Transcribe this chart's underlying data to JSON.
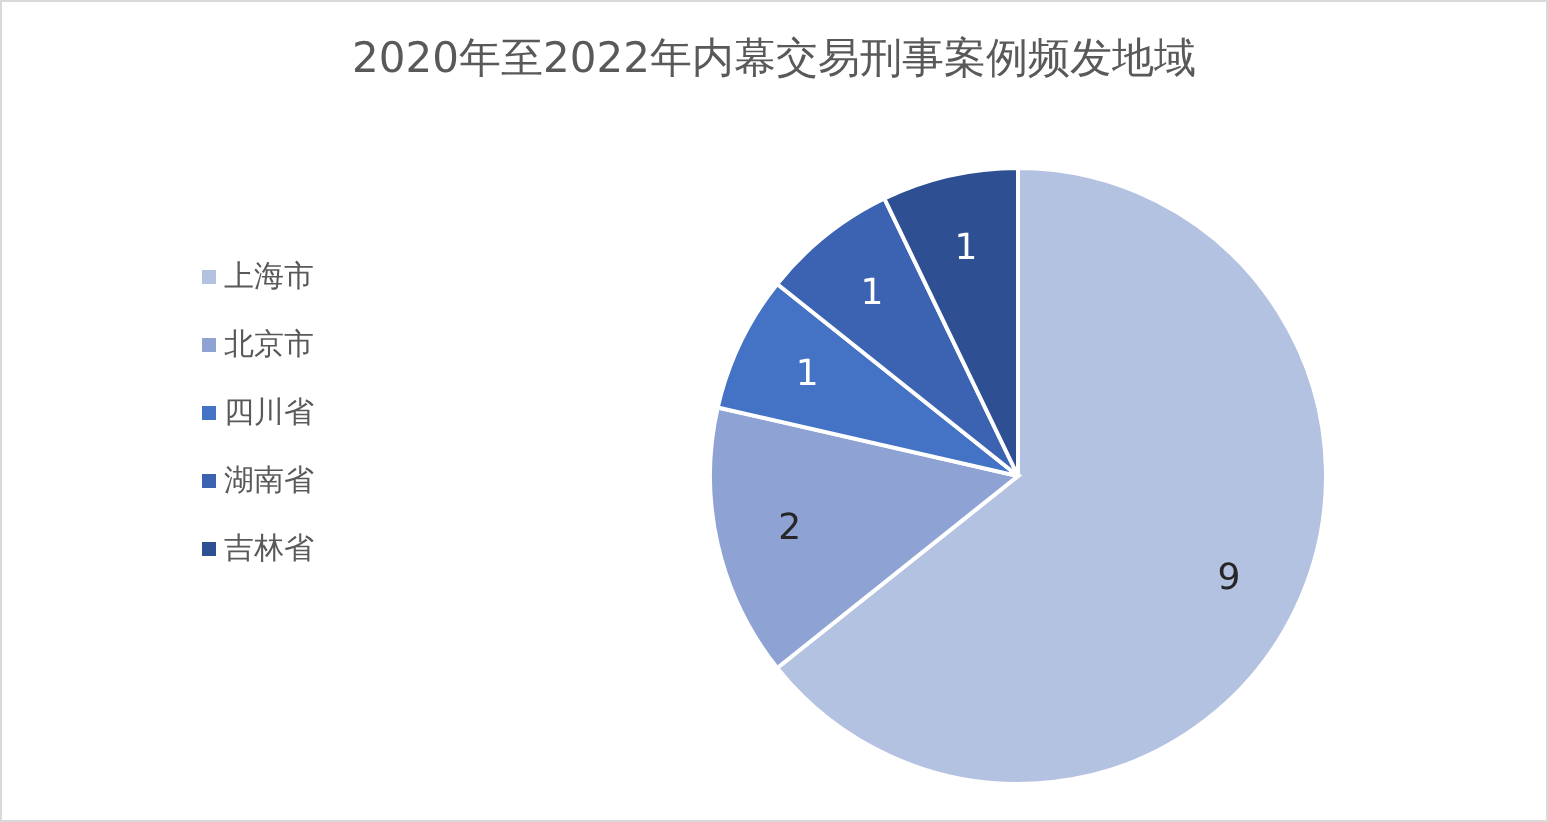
{
  "chart_data": {
    "type": "pie",
    "title": "2020年至2022年内幕交易刑事案例频发地域",
    "categories": [
      "上海市",
      "北京市",
      "四川省",
      "湖南省",
      "吉林省"
    ],
    "values": [
      9,
      2,
      1,
      1,
      1
    ],
    "colors": [
      "#b4c2e2",
      "#8ea2d4",
      "#4472c4",
      "#3b63b2",
      "#2f4f93"
    ],
    "data_labels": true,
    "legend": "left"
  }
}
